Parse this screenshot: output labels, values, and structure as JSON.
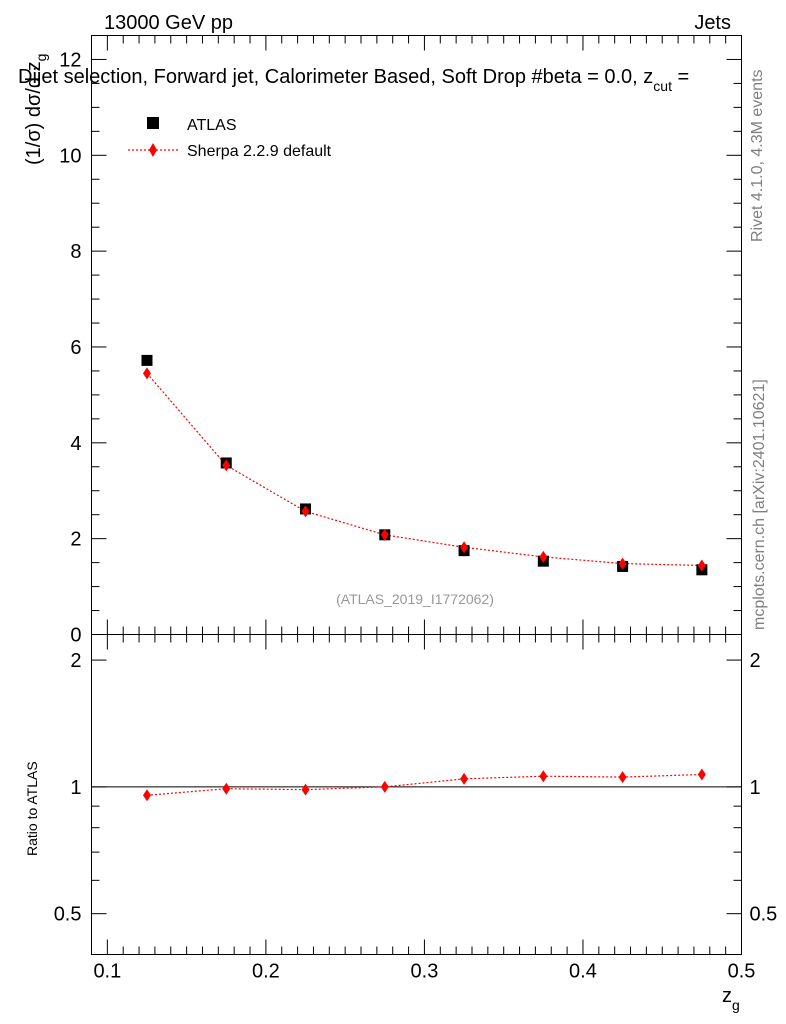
{
  "header": {
    "energy_label": "13000 GeV pp",
    "category_label": "Jets",
    "plot_title_main": "Dijet selection, Forward jet, Calorimeter Based, Soft Drop #beta = 0.0, z",
    "plot_title_sub": "cut",
    "plot_title_tail": " ="
  },
  "side_labels": {
    "rivet": "Rivet 4.1.0,  4.3M events",
    "mcplots": "mcplots.cern.ch [arXiv:2401.10621]"
  },
  "chart_data": [
    {
      "type": "scatter",
      "panel": "main",
      "ylabel_main": "(1/σ) dσ/d z",
      "ylabel_sub": "g",
      "xlabel_main": "z",
      "xlabel_sub": "g",
      "xlim": [
        0.09,
        0.5
      ],
      "ylim": [
        0,
        12.5
      ],
      "yticks": [
        0,
        2,
        4,
        6,
        8,
        10,
        12
      ],
      "ytick_labels": [
        "0",
        "2",
        "4",
        "6",
        "8",
        "10",
        "12"
      ],
      "watermark": "(ATLAS_2019_I1772062)",
      "legend_position": "top-left",
      "x": [
        0.125,
        0.175,
        0.225,
        0.275,
        0.325,
        0.375,
        0.425,
        0.475
      ],
      "series": [
        {
          "name": "ATLAS",
          "marker": "square",
          "color": "#000000",
          "values": [
            5.72,
            3.58,
            2.62,
            2.08,
            1.75,
            1.53,
            1.42,
            1.35
          ]
        },
        {
          "name": "Sherpa 2.2.9 default",
          "marker": "diamond",
          "line": "dotted",
          "color": "#ff0000",
          "values": [
            5.45,
            3.53,
            2.57,
            2.08,
            1.82,
            1.62,
            1.48,
            1.44
          ]
        }
      ]
    },
    {
      "type": "line",
      "panel": "ratio",
      "ylabel": "Ratio to ATLAS",
      "xlabel_main": "z",
      "xlabel_sub": "g",
      "xlim": [
        0.09,
        0.5
      ],
      "ylim": [
        0.4,
        2.3
      ],
      "yticks": [
        0.5,
        1,
        2
      ],
      "ytick_labels": [
        "0.5",
        "1",
        "2"
      ],
      "xticks": [
        0.1,
        0.2,
        0.3,
        0.4,
        0.5
      ],
      "xtick_labels": [
        "0.1",
        "0.2",
        "0.3",
        "0.4",
        "0.5"
      ],
      "reference": 1.0,
      "x": [
        0.125,
        0.175,
        0.225,
        0.275,
        0.325,
        0.375,
        0.425,
        0.475
      ],
      "series": [
        {
          "name": "Sherpa 2.2.9 default",
          "color": "#ff0000",
          "values": [
            0.955,
            0.99,
            0.985,
            1.0,
            1.045,
            1.06,
            1.055,
            1.07
          ]
        }
      ]
    }
  ]
}
